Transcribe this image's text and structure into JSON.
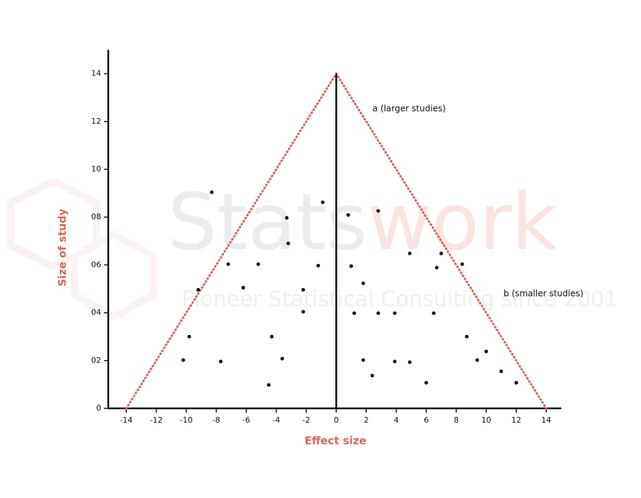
{
  "chart_data": {
    "type": "scatter",
    "xlabel": "Effect size",
    "ylabel": "Size of study",
    "x": [
      -8.3,
      -0.9,
      0.8,
      2.8,
      -3.3,
      -3.2,
      -7.2,
      -5.2,
      -1.2,
      1.0,
      4.9,
      7.0,
      6.7,
      8.4,
      -9.2,
      -6.2,
      -2.2,
      1.8,
      -2.2,
      1.2,
      2.8,
      3.9,
      6.5,
      -9.8,
      -4.3,
      8.7,
      10.0,
      -10.2,
      -7.7,
      -3.6,
      1.8,
      3.9,
      4.9,
      9.4,
      2.4,
      11.0,
      -4.5,
      6.0,
      12.0
    ],
    "values": [
      9.04,
      8.62,
      8.09,
      8.26,
      7.97,
      6.9,
      6.03,
      6.03,
      5.97,
      5.95,
      6.48,
      6.48,
      5.89,
      6.03,
      4.96,
      5.05,
      4.96,
      5.23,
      4.04,
      3.98,
      3.98,
      3.98,
      3.98,
      3.0,
      3.0,
      3.0,
      2.38,
      2.02,
      1.96,
      2.08,
      2.02,
      1.96,
      1.93,
      2.02,
      1.37,
      1.55,
      0.98,
      1.07,
      1.07
    ],
    "color": "#000000",
    "funnel": {
      "color": "#e06358",
      "x": [
        -14,
        0,
        14
      ],
      "y": [
        0,
        14,
        0
      ]
    },
    "center_line": {
      "x": 0,
      "y": [
        0,
        14
      ]
    },
    "annotations": [
      "a (larger studies)",
      "b (smaller studies)"
    ],
    "watermark": {
      "brand_left": "Stats",
      "brand_right": "work",
      "tagline": "Pioneer Statistical Consulting since 2001"
    },
    "xlim": [
      -15.2,
      15
    ],
    "ylim": [
      0,
      15
    ],
    "xticks": [
      -14,
      -12,
      -10,
      -8,
      -6,
      -4,
      -2,
      0,
      2,
      4,
      6,
      8,
      10,
      12,
      14
    ],
    "yticks": [
      0,
      {
        "value": 2,
        "label": "02"
      },
      {
        "value": 4,
        "label": "04"
      },
      {
        "value": 6,
        "label": "06"
      },
      {
        "value": 8,
        "label": "08"
      },
      10,
      12,
      14
    ]
  }
}
